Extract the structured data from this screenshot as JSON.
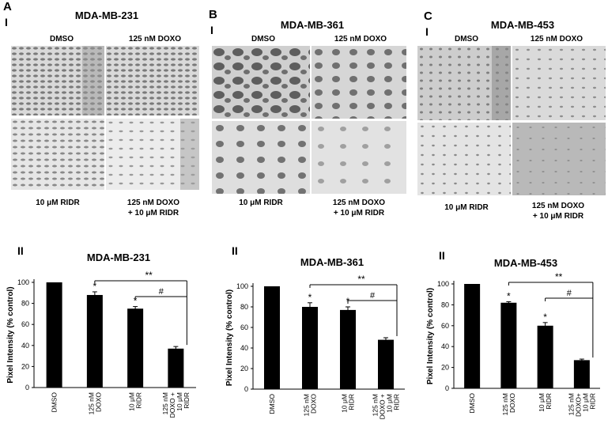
{
  "figure": {
    "panels": [
      {
        "letter": "A",
        "roman_top": "I",
        "title": "MDA-MB-231",
        "labels_top": [
          "DMSO",
          "125 nM DOXO"
        ],
        "label_bl": "10 μM RIDR",
        "label_br": [
          "125 nM DOXO",
          "+ 10 μM RIDR"
        ],
        "roman_bottom": "II",
        "chart_title": "MDA-MB-231"
      },
      {
        "letter": "B",
        "roman_top": "I",
        "title": "MDA-MB-361",
        "labels_top": [
          "DMSO",
          "125 nM DOXO"
        ],
        "label_bl": "10 μM RIDR",
        "label_br": [
          "125 nM DOXO",
          "+ 10 μM RIDR"
        ],
        "roman_bottom": "II",
        "chart_title": "MDA-MB-361"
      },
      {
        "letter": "C",
        "roman_top": "I",
        "title": "MDA-MB-453",
        "labels_top": [
          "DMSO",
          "125 nM DOXO"
        ],
        "label_bl": "10 μM RIDR",
        "label_br": [
          "125 nM DOXO",
          "+ 10 μM RIDR"
        ],
        "roman_bottom": "II",
        "chart_title": "MDA-MB-453"
      }
    ],
    "image_tones": [
      "#8f8f8f",
      "#6f6f6f",
      "#cfcfcf"
    ]
  },
  "chart_data": [
    {
      "type": "bar",
      "title": "MDA-MB-231",
      "ylabel": "Pixel Intensity (% control)",
      "ylim": [
        0,
        100
      ],
      "yticks": [
        "0",
        "20",
        "40",
        "60",
        "80",
        "100"
      ],
      "categories": [
        "DMSO",
        "125 nM DOXO",
        "10 μM RIDR",
        "125 nM DOXO + 10 μM RIDR"
      ],
      "category_lines": [
        [
          "DMSO"
        ],
        [
          "125 nM",
          "DOXO"
        ],
        [
          "10 μM",
          "RIDR"
        ],
        [
          "125 nM",
          "DOXO +",
          "10 μM",
          "RIDR"
        ]
      ],
      "values": [
        100,
        88,
        75,
        37
      ],
      "errors": [
        0,
        3,
        2,
        2
      ],
      "markers": [
        "",
        "*",
        "*",
        ""
      ],
      "significance": [
        {
          "label": "**",
          "from": 1,
          "to": 3
        },
        {
          "label": "#",
          "from": 2,
          "to": 3
        }
      ],
      "bar_color": "#000000"
    },
    {
      "type": "bar",
      "title": "MDA-MB-361",
      "ylabel": "Pixel Intensity (% control)",
      "ylim": [
        0,
        100
      ],
      "yticks": [
        "0",
        "20",
        "40",
        "60",
        "80",
        "100"
      ],
      "categories": [
        "DMSO",
        "125 nM DOXO",
        "10 μM RIDR",
        "125 nM DOXO + 10 μM RIDR"
      ],
      "category_lines": [
        [
          "DMSO"
        ],
        [
          "125 nM",
          "DOXO"
        ],
        [
          "10 μM",
          "RIDR"
        ],
        [
          "125 nM",
          "DOXO +",
          "10 μM",
          "RIDR"
        ]
      ],
      "values": [
        100,
        80,
        77,
        48
      ],
      "errors": [
        0,
        4,
        3,
        2
      ],
      "markers": [
        "",
        "*",
        "*",
        ""
      ],
      "significance": [
        {
          "label": "**",
          "from": 1,
          "to": 3
        },
        {
          "label": "#",
          "from": 2,
          "to": 3
        }
      ],
      "bar_color": "#000000"
    },
    {
      "type": "bar",
      "title": "MDA-MB-453",
      "ylabel": "Pixel Intensity (% control)",
      "ylim": [
        0,
        100
      ],
      "yticks": [
        "0",
        "20",
        "40",
        "60",
        "80",
        "100"
      ],
      "categories": [
        "DMSO",
        "125 nM DOXO",
        "10 μM RIDR",
        "125 nM DOXO+ 10 μM RIDR"
      ],
      "category_lines": [
        [
          "DMSO"
        ],
        [
          "125 nM",
          "DOXO"
        ],
        [
          "10 μM",
          "RIDR"
        ],
        [
          "125 nM",
          "DOXO+",
          "10 μM",
          "RIDR"
        ]
      ],
      "values": [
        100,
        82,
        60,
        27
      ],
      "errors": [
        0,
        1,
        3,
        1
      ],
      "markers": [
        "",
        "*",
        "*",
        ""
      ],
      "significance": [
        {
          "label": "**",
          "from": 1,
          "to": 3
        },
        {
          "label": "#",
          "from": 2,
          "to": 3
        }
      ],
      "bar_color": "#000000"
    }
  ]
}
